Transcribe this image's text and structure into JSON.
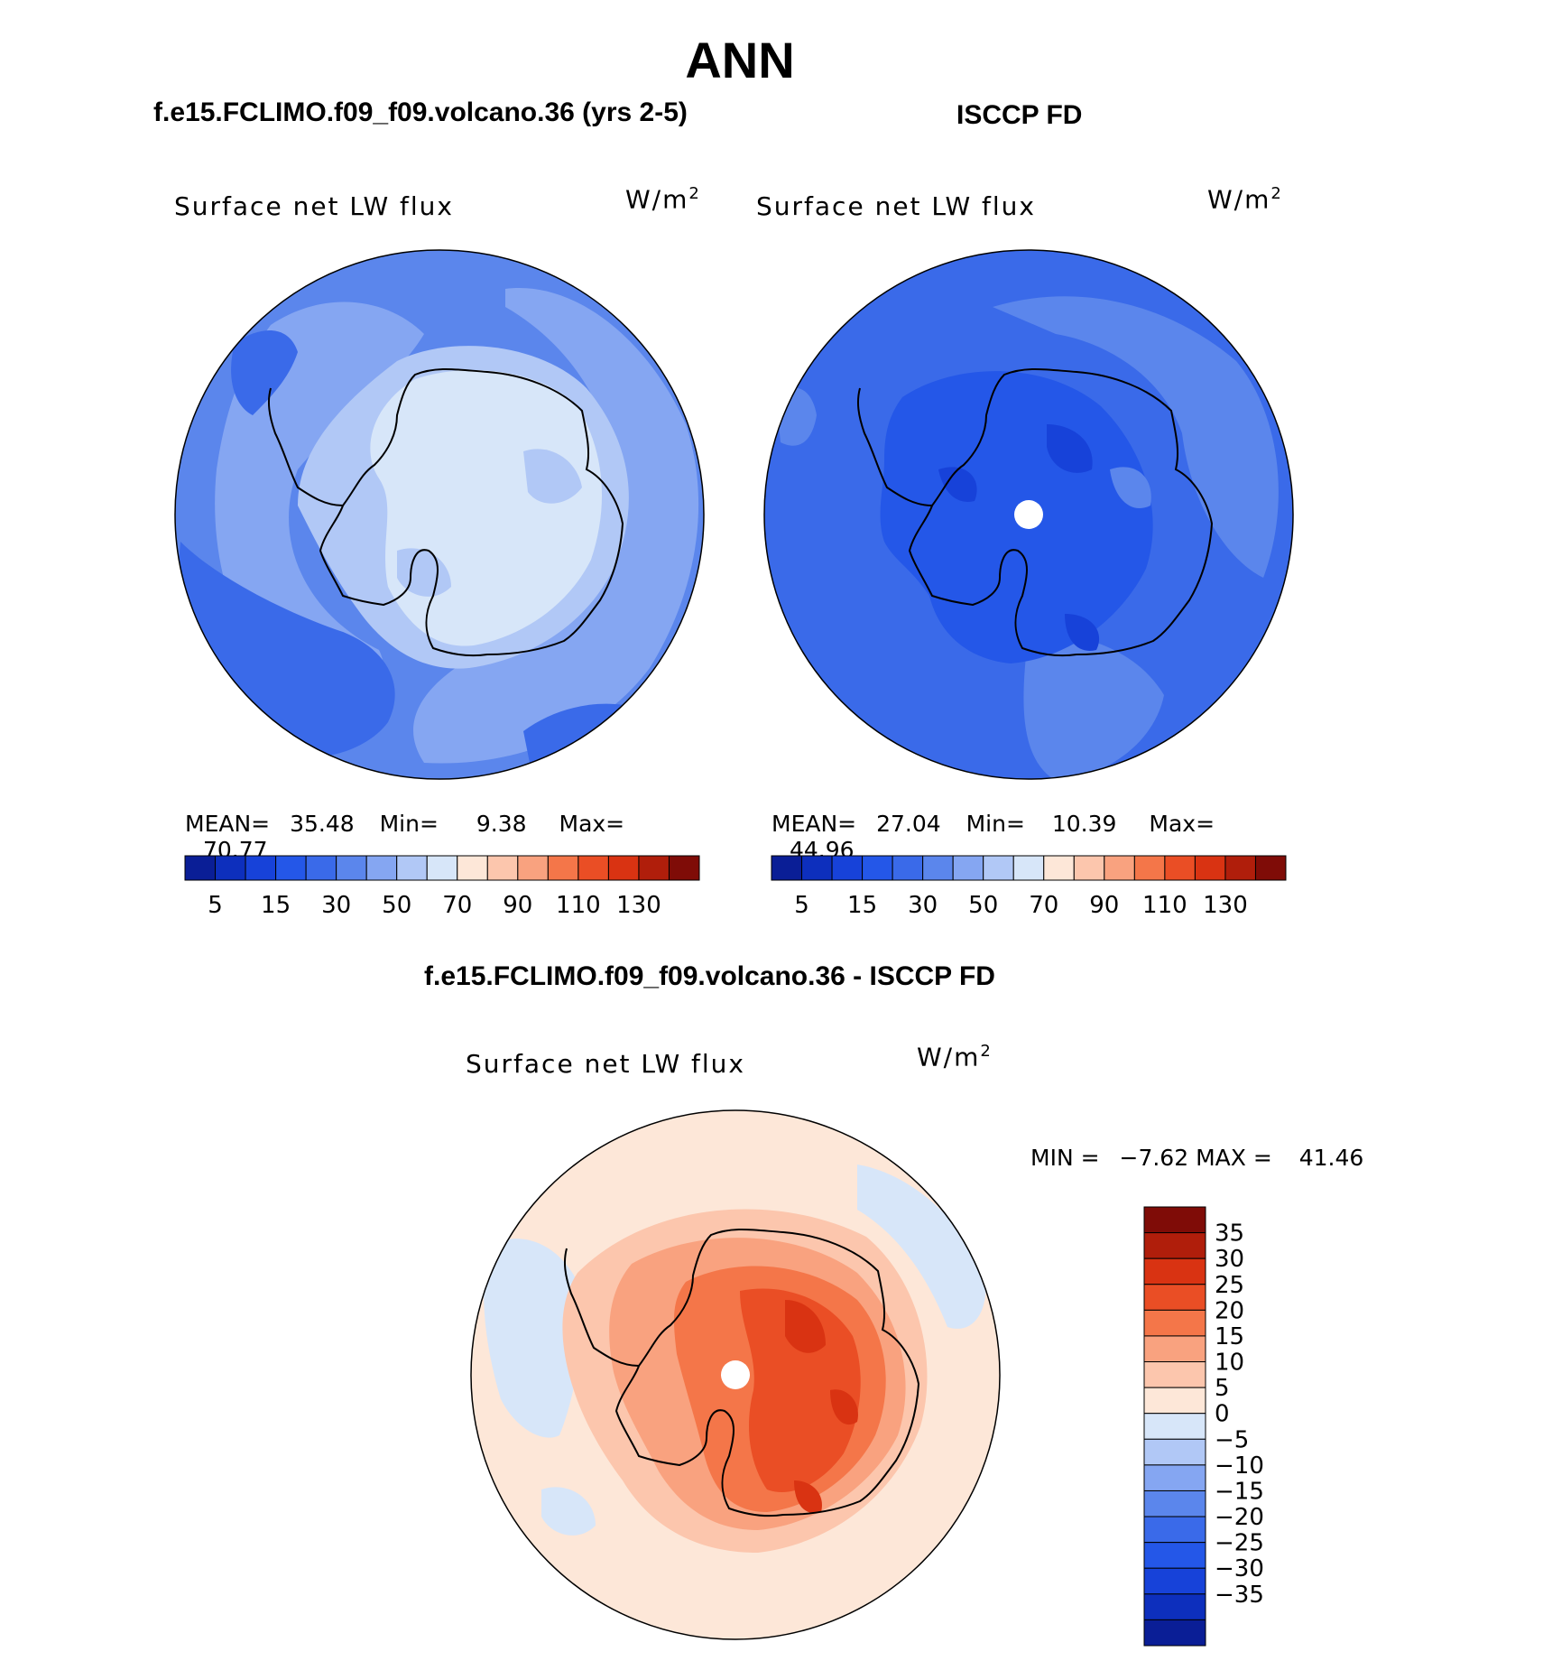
{
  "figure": {
    "season": "ANN",
    "units": "W/m",
    "units_exp": "2",
    "variable": "Surface net LW flux"
  },
  "chart_data": [
    {
      "type": "heatmap",
      "projection": "south polar stereographic",
      "title": "f.e15.FCLIMO.f09_f09.volcano.36 (yrs 2-5)",
      "variable": "Surface net LW flux",
      "units": "W/m2",
      "stats": {
        "mean_label": "MEAN=",
        "mean": "35.48",
        "min_label": "Min=",
        "min": "9.38",
        "max_label": "Max=",
        "max": "70.77"
      },
      "colorbar": {
        "levels": [
          "5",
          "15",
          "30",
          "50",
          "70",
          "90",
          "110",
          "130"
        ],
        "colors": [
          "#0a1e96",
          "#0d2fbd",
          "#1742d9",
          "#2457e8",
          "#3a6ae9",
          "#5b86ec",
          "#85a6f2",
          "#b1c8f6",
          "#d7e6f9",
          "#fde7d8",
          "#fcc6ad",
          "#f9a27f",
          "#f47649",
          "#ea4e25",
          "#d93312",
          "#b01e0b",
          "#7f0c07"
        ]
      }
    },
    {
      "type": "heatmap",
      "projection": "south polar stereographic",
      "title": "ISCCP FD",
      "variable": "Surface net LW flux",
      "units": "W/m2",
      "stats": {
        "mean_label": "MEAN=",
        "mean": "27.04",
        "min_label": "Min=",
        "min": "10.39",
        "max_label": "Max=",
        "max": "44.96"
      },
      "colorbar": {
        "levels": [
          "5",
          "15",
          "30",
          "50",
          "70",
          "90",
          "110",
          "130"
        ],
        "colors": [
          "#0a1e96",
          "#0d2fbd",
          "#1742d9",
          "#2457e8",
          "#3a6ae9",
          "#5b86ec",
          "#85a6f2",
          "#b1c8f6",
          "#d7e6f9",
          "#fde7d8",
          "#fcc6ad",
          "#f9a27f",
          "#f47649",
          "#ea4e25",
          "#d93312",
          "#b01e0b",
          "#7f0c07"
        ]
      }
    },
    {
      "type": "heatmap",
      "projection": "south polar stereographic",
      "title": "f.e15.FCLIMO.f09_f09.volcano.36 - ISCCP FD",
      "variable": "Surface net LW flux",
      "units": "W/m2",
      "stats": {
        "min_label": "MIN =",
        "min": "−7.62",
        "max_label": "MAX =",
        "max": "41.46"
      },
      "colorbar": {
        "levels": [
          "35",
          "30",
          "25",
          "20",
          "15",
          "10",
          "5",
          "0",
          "−5",
          "−10",
          "−15",
          "−20",
          "−25",
          "−30",
          "−35"
        ],
        "colors": [
          "#7f0c07",
          "#b01e0b",
          "#d93312",
          "#ea4e25",
          "#f47649",
          "#f9a27f",
          "#fcc6ad",
          "#fde7d8",
          "#d7e6f9",
          "#b1c8f6",
          "#85a6f2",
          "#5b86ec",
          "#3a6ae9",
          "#2457e8",
          "#1742d9",
          "#0d2fbd",
          "#0a1e96"
        ]
      }
    }
  ]
}
